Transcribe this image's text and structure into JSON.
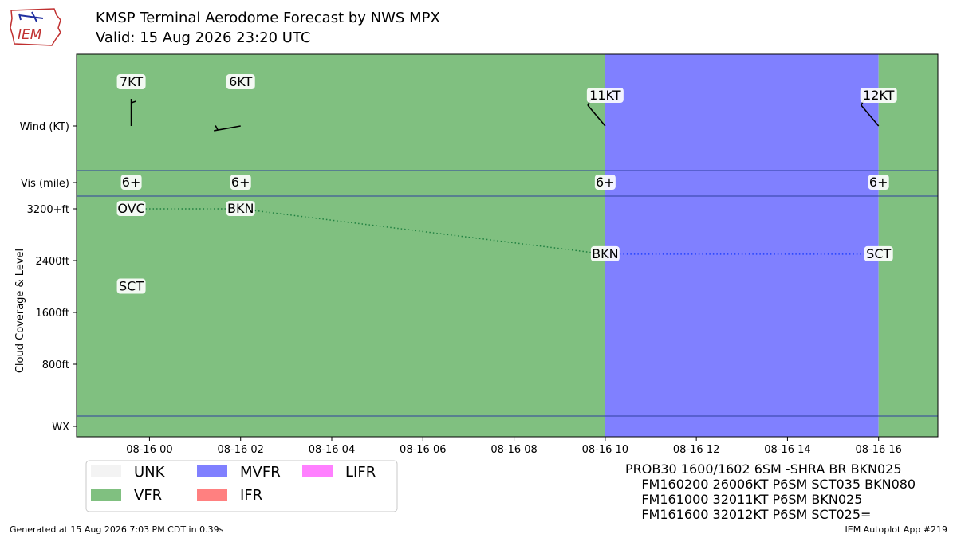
{
  "header": {
    "title": "KMSP Terminal Aerodome Forecast by NWS MPX",
    "subtitle": "Valid: 15 Aug 2026 23:20 UTC",
    "logo_text": "IEM"
  },
  "chart_data": {
    "type": "timeline",
    "x": {
      "start_hour": -1.6,
      "end_hour": 17.3,
      "tick_hours": [
        0,
        2,
        4,
        6,
        8,
        10,
        12,
        14,
        16
      ],
      "tick_labels": [
        "08-16 00",
        "08-16 02",
        "08-16 04",
        "08-16 06",
        "08-16 08",
        "08-16 10",
        "08-16 12",
        "08-16 14",
        "08-16 16"
      ]
    },
    "row_labels": {
      "wind": "Wind (KT)",
      "vis": "Vis (mile)",
      "wx": "WX"
    },
    "cloud_axis": {
      "ylabel": "Cloud Coverage & Level",
      "tick_values": [
        3200,
        2400,
        1600,
        800
      ],
      "tick_labels": [
        "3200+ft",
        "2400ft",
        "1600ft",
        "800ft"
      ]
    },
    "category_colors": {
      "VFR": "#80c080",
      "MVFR": "#8080ff",
      "IFR": "#ff8080",
      "LIFR": "#ff80ff",
      "UNK": "#f3f3f3"
    },
    "bands": [
      {
        "start": -1.6,
        "end": 10,
        "category": "VFR"
      },
      {
        "start": 10,
        "end": 16,
        "category": "MVFR"
      },
      {
        "start": 16,
        "end": 17.3,
        "category": "VFR"
      }
    ],
    "forecasts": [
      {
        "hour": -0.4,
        "wind_label": "7KT",
        "wind_dir": 360,
        "wind_kt": 7,
        "vis": "6+",
        "clouds": [
          {
            "cover": "OVC",
            "level": 3200
          },
          {
            "cover": "SCT",
            "level": 2000
          }
        ]
      },
      {
        "hour": 2.0,
        "wind_label": "6KT",
        "wind_dir": 260,
        "wind_kt": 6,
        "vis": "6+",
        "clouds": [
          {
            "cover": "BKN",
            "level": 3200
          }
        ]
      },
      {
        "hour": 10.0,
        "wind_label": "11KT",
        "wind_dir": 320,
        "wind_kt": 11,
        "vis": "6+",
        "clouds": [
          {
            "cover": "BKN",
            "level": 2500
          }
        ]
      },
      {
        "hour": 16.0,
        "wind_label": "12KT",
        "wind_dir": 320,
        "wind_kt": 12,
        "vis": "6+",
        "clouds": [
          {
            "cover": "SCT",
            "level": 2500
          }
        ]
      }
    ],
    "cloud_lines": [
      {
        "from": [
          -0.4,
          3200
        ],
        "to": [
          2.0,
          3200
        ],
        "color": "#208040"
      },
      {
        "from": [
          2.0,
          3200
        ],
        "to": [
          10.0,
          2500
        ],
        "color": "#208040"
      },
      {
        "from": [
          10.0,
          2500
        ],
        "to": [
          16.0,
          2500
        ],
        "color": "#2040ff"
      }
    ],
    "legend": {
      "items": [
        {
          "label": "UNK",
          "color": "#f3f3f3"
        },
        {
          "label": "VFR",
          "color": "#80c080"
        },
        {
          "label": "MVFR",
          "color": "#8080ff"
        },
        {
          "label": "IFR",
          "color": "#ff8080"
        },
        {
          "label": "LIFR",
          "color": "#ff80ff"
        }
      ]
    }
  },
  "taf_text": "PROB30 1600/1602 6SM -SHRA BR BKN025\n    FM160200 26006KT P6SM SCT035 BKN080\n    FM161000 32011KT P6SM BKN025\n    FM161600 32012KT P6SM SCT025=",
  "footer": {
    "left": "Generated at 15 Aug 2026 7:03 PM CDT in 0.39s",
    "right": "IEM Autoplot App #219"
  }
}
